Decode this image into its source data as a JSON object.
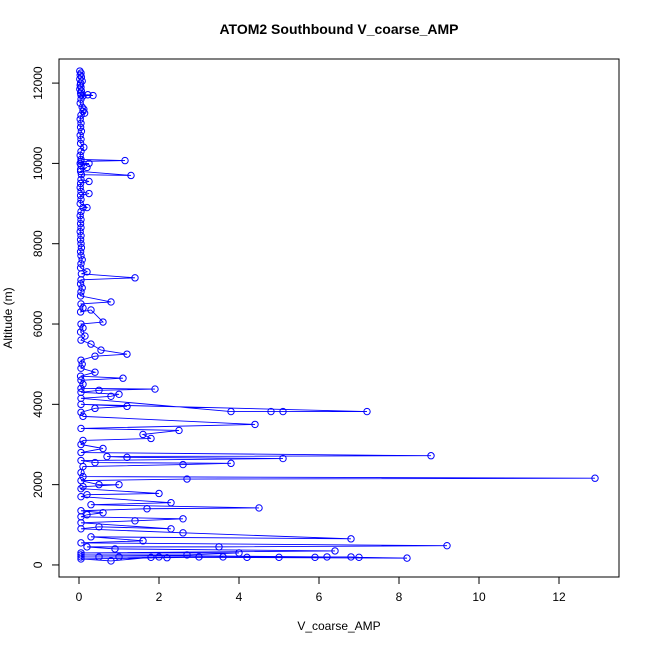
{
  "chart_data": {
    "type": "line",
    "title": "ATOM2 Southbound V_coarse_AMP",
    "xlabel": "V_coarse_AMP",
    "ylabel": "Altitude (m)",
    "xlim": [
      -0.5,
      13.5
    ],
    "ylim": [
      -300,
      12600
    ],
    "xticks": [
      0,
      2,
      4,
      6,
      8,
      10,
      12
    ],
    "yticks": [
      0,
      2000,
      4000,
      6000,
      8000,
      10000,
      12000
    ],
    "series_color": "#0000ff",
    "marker": "open-circle",
    "series": [
      {
        "values": [
          [
            0.02,
            12300
          ],
          [
            0.05,
            12250
          ],
          [
            0.03,
            12200
          ],
          [
            0.06,
            12150
          ],
          [
            0.02,
            12100
          ],
          [
            0.08,
            12050
          ],
          [
            0.04,
            12000
          ],
          [
            0.03,
            11950
          ],
          [
            0.05,
            11900
          ],
          [
            0.02,
            11850
          ],
          [
            0.06,
            11800
          ],
          [
            0.04,
            11750
          ],
          [
            0.05,
            11700
          ],
          [
            0.35,
            11690
          ],
          [
            0.22,
            11710
          ],
          [
            0.1,
            11680
          ],
          [
            0.05,
            11600
          ],
          [
            0.03,
            11500
          ],
          [
            0.08,
            11400
          ],
          [
            0.12,
            11350
          ],
          [
            0.1,
            11300
          ],
          [
            0.14,
            11250
          ],
          [
            0.05,
            11200
          ],
          [
            0.03,
            11100
          ],
          [
            0.05,
            11000
          ],
          [
            0.04,
            10900
          ],
          [
            0.06,
            10800
          ],
          [
            0.03,
            10700
          ],
          [
            0.05,
            10600
          ],
          [
            0.04,
            10500
          ],
          [
            0.12,
            10400
          ],
          [
            0.05,
            10300
          ],
          [
            0.03,
            10200
          ],
          [
            0.05,
            10100
          ],
          [
            1.15,
            10070
          ],
          [
            0.05,
            10050
          ],
          [
            0.03,
            10000
          ],
          [
            0.25,
            10000
          ],
          [
            0.05,
            9950
          ],
          [
            0.04,
            9850
          ],
          [
            0.2,
            9900
          ],
          [
            0.04,
            9800
          ],
          [
            1.3,
            9700
          ],
          [
            0.06,
            9720
          ],
          [
            0.05,
            9600
          ],
          [
            0.25,
            9550
          ],
          [
            0.04,
            9500
          ],
          [
            0.03,
            9400
          ],
          [
            0.05,
            9300
          ],
          [
            0.25,
            9250
          ],
          [
            0.04,
            9200
          ],
          [
            0.05,
            9100
          ],
          [
            0.03,
            9000
          ],
          [
            0.2,
            8900
          ],
          [
            0.1,
            8900
          ],
          [
            0.05,
            8800
          ],
          [
            0.03,
            8700
          ],
          [
            0.05,
            8600
          ],
          [
            0.04,
            8500
          ],
          [
            0.05,
            8400
          ],
          [
            0.03,
            8300
          ],
          [
            0.05,
            8200
          ],
          [
            0.04,
            8100
          ],
          [
            0.05,
            8000
          ],
          [
            0.06,
            7900
          ],
          [
            0.04,
            7800
          ],
          [
            0.05,
            7700
          ],
          [
            0.08,
            7600
          ],
          [
            0.05,
            7500
          ],
          [
            0.04,
            7400
          ],
          [
            0.2,
            7300
          ],
          [
            0.06,
            7250
          ],
          [
            1.4,
            7150
          ],
          [
            0.05,
            7100
          ],
          [
            0.04,
            7000
          ],
          [
            0.08,
            6900
          ],
          [
            0.05,
            6800
          ],
          [
            0.04,
            6700
          ],
          [
            0.8,
            6550
          ],
          [
            0.05,
            6500
          ],
          [
            0.1,
            6400
          ],
          [
            0.04,
            6300
          ],
          [
            0.3,
            6350
          ],
          [
            0.6,
            6050
          ],
          [
            0.05,
            6000
          ],
          [
            0.1,
            5900
          ],
          [
            0.04,
            5800
          ],
          [
            0.15,
            5700
          ],
          [
            0.05,
            5600
          ],
          [
            0.3,
            5500
          ],
          [
            0.55,
            5350
          ],
          [
            1.2,
            5250
          ],
          [
            0.4,
            5200
          ],
          [
            0.05,
            5100
          ],
          [
            0.08,
            5000
          ],
          [
            0.05,
            4900
          ],
          [
            0.4,
            4800
          ],
          [
            0.04,
            4700
          ],
          [
            1.1,
            4650
          ],
          [
            0.05,
            4600
          ],
          [
            0.1,
            4500
          ],
          [
            0.05,
            4400
          ],
          [
            1.9,
            4380
          ],
          [
            0.5,
            4350
          ],
          [
            0.05,
            4300
          ],
          [
            1.0,
            4250
          ],
          [
            0.8,
            4200
          ],
          [
            0.05,
            4150
          ],
          [
            3.8,
            3820
          ],
          [
            4.8,
            3820
          ],
          [
            5.1,
            3820
          ],
          [
            7.2,
            3820
          ],
          [
            0.05,
            4000
          ],
          [
            1.2,
            3950
          ],
          [
            0.4,
            3900
          ],
          [
            0.05,
            3800
          ],
          [
            0.1,
            3700
          ],
          [
            4.4,
            3500
          ],
          [
            0.05,
            3400
          ],
          [
            2.5,
            3350
          ],
          [
            1.6,
            3250
          ],
          [
            1.8,
            3150
          ],
          [
            0.1,
            3100
          ],
          [
            0.05,
            3000
          ],
          [
            0.6,
            2900
          ],
          [
            0.05,
            2800
          ],
          [
            8.8,
            2720
          ],
          [
            0.7,
            2700
          ],
          [
            1.2,
            2680
          ],
          [
            5.1,
            2650
          ],
          [
            0.05,
            2600
          ],
          [
            0.4,
            2550
          ],
          [
            3.8,
            2530
          ],
          [
            2.6,
            2500
          ],
          [
            0.1,
            2450
          ],
          [
            0.05,
            2300
          ],
          [
            0.1,
            2200
          ],
          [
            12.9,
            2160
          ],
          [
            2.7,
            2140
          ],
          [
            0.05,
            2100
          ],
          [
            0.5,
            2000
          ],
          [
            1.0,
            2000
          ],
          [
            0.1,
            1950
          ],
          [
            0.05,
            1900
          ],
          [
            2.0,
            1780
          ],
          [
            0.2,
            1750
          ],
          [
            0.05,
            1700
          ],
          [
            2.3,
            1550
          ],
          [
            0.3,
            1500
          ],
          [
            4.5,
            1420
          ],
          [
            1.7,
            1400
          ],
          [
            0.05,
            1350
          ],
          [
            0.6,
            1300
          ],
          [
            0.2,
            1250
          ],
          [
            0.05,
            1200
          ],
          [
            2.6,
            1150
          ],
          [
            1.4,
            1100
          ],
          [
            0.05,
            1050
          ],
          [
            2.3,
            900
          ],
          [
            0.5,
            950
          ],
          [
            0.05,
            900
          ],
          [
            2.6,
            800
          ],
          [
            6.8,
            650
          ],
          [
            0.3,
            700
          ],
          [
            1.6,
            600
          ],
          [
            0.05,
            550
          ],
          [
            9.2,
            480
          ],
          [
            3.5,
            450
          ],
          [
            0.2,
            450
          ],
          [
            0.9,
            400
          ],
          [
            6.4,
            350
          ],
          [
            0.05,
            300
          ],
          [
            4.0,
            300
          ],
          [
            2.7,
            250
          ],
          [
            0.05,
            250
          ],
          [
            6.2,
            200
          ],
          [
            6.8,
            200
          ],
          [
            7.0,
            190
          ],
          [
            8.2,
            170
          ],
          [
            0.5,
            200
          ],
          [
            0.05,
            200
          ],
          [
            1.0,
            200
          ],
          [
            2.0,
            200
          ],
          [
            3.0,
            200
          ],
          [
            5.0,
            190
          ],
          [
            5.9,
            190
          ],
          [
            4.2,
            190
          ],
          [
            1.8,
            190
          ],
          [
            0.8,
            100
          ],
          [
            0.05,
            150
          ],
          [
            2.2,
            180
          ],
          [
            3.6,
            200
          ]
        ]
      }
    ]
  }
}
